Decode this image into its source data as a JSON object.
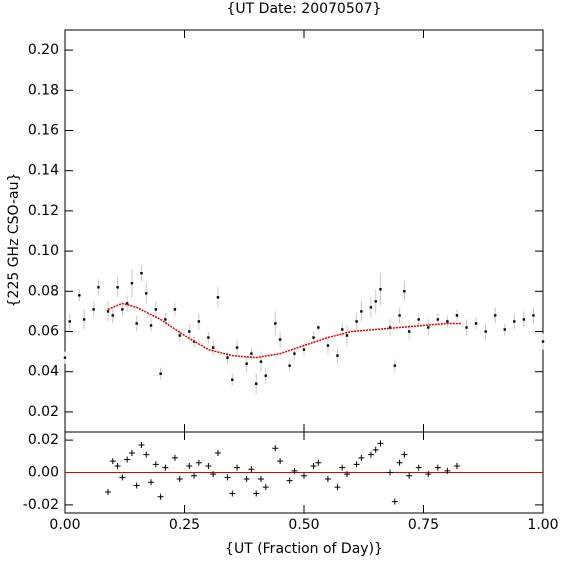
{
  "chart_data": [
    {
      "type": "errorbar-scatter",
      "title": "{UT Date: 20070507}",
      "ylabel": "{225 GHz CSO-au}",
      "xlim": [
        0,
        1
      ],
      "ylim": [
        0.01,
        0.21
      ],
      "xticks": [
        0,
        0.25,
        0.5,
        0.75,
        1
      ],
      "yticks": [
        0.02,
        0.04,
        0.06,
        0.08,
        {
          "value": 0.1,
          "label": "0.10"
        },
        0.12,
        0.14,
        0.16,
        0.18,
        {
          "value": 0.2,
          "label": "0.20"
        }
      ],
      "point_color": "#000000",
      "error_color": "#c8c8c8",
      "fit_color": "#e00000",
      "x": [
        0.0,
        0.01,
        0.03,
        0.04,
        0.06,
        0.07,
        0.09,
        0.1,
        0.11,
        0.12,
        0.13,
        0.14,
        0.15,
        0.16,
        0.17,
        0.18,
        0.19,
        0.2,
        0.21,
        0.23,
        0.24,
        0.26,
        0.27,
        0.28,
        0.3,
        0.31,
        0.32,
        0.34,
        0.35,
        0.36,
        0.38,
        0.39,
        0.4,
        0.41,
        0.42,
        0.44,
        0.45,
        0.47,
        0.48,
        0.5,
        0.52,
        0.53,
        0.55,
        0.57,
        0.58,
        0.59,
        0.61,
        0.62,
        0.64,
        0.65,
        0.66,
        0.68,
        0.69,
        0.7,
        0.71,
        0.72,
        0.74,
        0.76,
        0.78,
        0.8,
        0.82,
        0.84,
        0.86,
        0.88,
        0.9,
        0.92,
        0.94,
        0.96,
        0.98,
        1.0
      ],
      "values": [
        0.047,
        0.065,
        0.078,
        0.066,
        0.071,
        0.082,
        0.07,
        0.068,
        0.082,
        0.071,
        0.074,
        0.084,
        0.064,
        0.089,
        0.079,
        0.063,
        0.071,
        0.039,
        0.066,
        0.071,
        0.058,
        0.06,
        0.055,
        0.065,
        0.057,
        0.052,
        0.077,
        0.047,
        0.036,
        0.052,
        0.044,
        0.049,
        0.034,
        0.045,
        0.038,
        0.064,
        0.056,
        0.043,
        0.049,
        0.051,
        0.057,
        0.062,
        0.053,
        0.048,
        0.061,
        0.058,
        0.065,
        0.07,
        0.072,
        0.075,
        0.081,
        0.062,
        0.043,
        0.068,
        0.08,
        0.06,
        0.066,
        0.062,
        0.066,
        0.065,
        0.068,
        0.062,
        0.064,
        0.06,
        0.068,
        0.061,
        0.065,
        0.066,
        0.068,
        0.055
      ],
      "errors": [
        0.003,
        0.004,
        0.003,
        0.005,
        0.004,
        0.004,
        0.005,
        0.004,
        0.005,
        0.003,
        0.004,
        0.007,
        0.004,
        0.004,
        0.005,
        0.003,
        0.004,
        0.003,
        0.003,
        0.003,
        0.003,
        0.004,
        0.003,
        0.004,
        0.003,
        0.004,
        0.005,
        0.003,
        0.003,
        0.004,
        0.004,
        0.003,
        0.005,
        0.005,
        0.004,
        0.006,
        0.004,
        0.003,
        0.003,
        0.003,
        0.003,
        0.002,
        0.004,
        0.004,
        0.004,
        0.005,
        0.004,
        0.005,
        0.005,
        0.006,
        0.008,
        0.004,
        0.003,
        0.004,
        0.005,
        0.004,
        0.003,
        0.004,
        0.003,
        0.003,
        0.003,
        0.004,
        0.003,
        0.004,
        0.004,
        0.003,
        0.004,
        0.004,
        0.004,
        0.004
      ],
      "fit_x": [
        0.09,
        0.12,
        0.15,
        0.2,
        0.25,
        0.3,
        0.35,
        0.4,
        0.45,
        0.5,
        0.55,
        0.6,
        0.65,
        0.7,
        0.75,
        0.8,
        0.83
      ],
      "fit_values": [
        0.071,
        0.074,
        0.072,
        0.066,
        0.058,
        0.051,
        0.048,
        0.047,
        0.049,
        0.053,
        0.057,
        0.06,
        0.061,
        0.062,
        0.063,
        0.064,
        0.064
      ]
    },
    {
      "type": "residual-scatter",
      "xlabel": "{UT (Fraction of Day)}",
      "xlim": [
        0,
        1
      ],
      "ylim": [
        -0.025,
        0.025
      ],
      "xticks": [
        {
          "value": 0,
          "label": "0.00"
        },
        {
          "value": 0.25,
          "label": "0.25"
        },
        {
          "value": 0.5,
          "label": "0.50"
        },
        {
          "value": 0.75,
          "label": "0.75"
        },
        {
          "value": 1,
          "label": "1.00"
        }
      ],
      "yticks": [
        -0.02,
        {
          "value": 0,
          "label": "0.00"
        },
        0.02
      ],
      "point_color": "#000000",
      "hline": 0,
      "hline_color": "#e00000",
      "x": [
        0.09,
        0.1,
        0.11,
        0.12,
        0.13,
        0.14,
        0.15,
        0.16,
        0.17,
        0.18,
        0.19,
        0.2,
        0.21,
        0.23,
        0.24,
        0.26,
        0.27,
        0.28,
        0.3,
        0.31,
        0.32,
        0.34,
        0.35,
        0.36,
        0.38,
        0.39,
        0.4,
        0.41,
        0.42,
        0.44,
        0.45,
        0.47,
        0.48,
        0.5,
        0.52,
        0.53,
        0.55,
        0.57,
        0.58,
        0.59,
        0.61,
        0.62,
        0.64,
        0.65,
        0.66,
        0.68,
        0.69,
        0.7,
        0.71,
        0.72,
        0.74,
        0.76,
        0.78,
        0.8,
        0.82
      ],
      "values": [
        -0.012,
        0.007,
        0.004,
        -0.003,
        0.008,
        0.012,
        -0.008,
        0.017,
        0.011,
        -0.006,
        0.005,
        -0.015,
        0.003,
        0.009,
        -0.004,
        0.004,
        -0.002,
        0.006,
        0.004,
        -0.001,
        0.012,
        -0.003,
        -0.013,
        0.003,
        -0.004,
        0.002,
        -0.013,
        -0.004,
        -0.009,
        0.015,
        0.007,
        -0.005,
        0.001,
        -0.002,
        0.004,
        0.006,
        -0.004,
        -0.009,
        0.003,
        -0.001,
        0.005,
        0.009,
        0.011,
        0.014,
        0.018,
        0.0,
        -0.018,
        0.006,
        0.011,
        -0.002,
        0.003,
        -0.001,
        0.003,
        0.001,
        0.004
      ]
    }
  ]
}
